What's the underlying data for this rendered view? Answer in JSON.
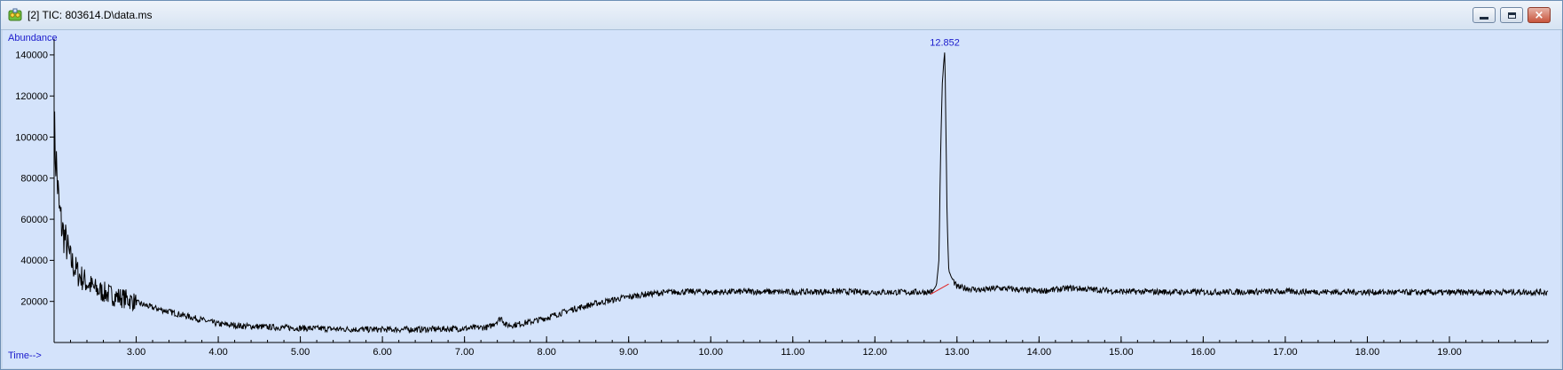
{
  "window": {
    "title": "[2] TIC: 803614.D\\data.ms",
    "icon": "chromatogram-icon",
    "buttons": [
      "minimize-icon",
      "maximize-icon",
      "close-icon"
    ],
    "close_glyph": "×"
  },
  "colors": {
    "plot_background": "#d4e3fb",
    "trace": "#000000",
    "baseline": "#e02020",
    "axis_title": "#1a1acc",
    "peak_label": "#1a1acc"
  },
  "chart_data": {
    "type": "line",
    "title": "",
    "ylabel": "Abundance",
    "xlabel": "Time-->",
    "xlim": [
      2.0,
      20.2
    ],
    "ylim": [
      0,
      146000
    ],
    "x_ticks": [
      "3.00",
      "4.00",
      "5.00",
      "6.00",
      "7.00",
      "8.00",
      "9.00",
      "10.00",
      "11.00",
      "12.00",
      "13.00",
      "14.00",
      "15.00",
      "16.00",
      "17.00",
      "18.00",
      "19.00"
    ],
    "y_ticks": [
      "20000",
      "40000",
      "60000",
      "80000",
      "100000",
      "120000",
      "140000"
    ],
    "grid": false,
    "series": [
      {
        "x": [
          2.0,
          2.03,
          2.06,
          2.1,
          2.15,
          2.2,
          2.3,
          2.4,
          2.5,
          2.7,
          2.9,
          3.0,
          3.2,
          3.4,
          3.6,
          3.8,
          4.0,
          4.3,
          4.6,
          5.0,
          5.5,
          6.0,
          6.5,
          7.0,
          7.3,
          7.45,
          7.5,
          7.6,
          7.8,
          8.0,
          8.3,
          8.6,
          8.9,
          9.2,
          9.5,
          9.8,
          10.0,
          10.5,
          11.0,
          11.5,
          12.0,
          12.5,
          12.7,
          12.75,
          12.78,
          12.8,
          12.82,
          12.84,
          12.852,
          12.86,
          12.88,
          12.9,
          12.93,
          12.97,
          13.0,
          13.3,
          13.5,
          14.0,
          14.4,
          15.0,
          16.0,
          17.0,
          18.0,
          19.0,
          19.5,
          20.2
        ],
        "y": [
          102000,
          85000,
          65000,
          55000,
          48000,
          40000,
          33000,
          29000,
          26000,
          23000,
          21000,
          19500,
          17000,
          15000,
          13000,
          11000,
          9000,
          8000,
          7500,
          7000,
          6500,
          6300,
          6400,
          6800,
          7500,
          12000,
          8500,
          8500,
          10000,
          12000,
          16000,
          19000,
          21500,
          23500,
          24500,
          24800,
          24500,
          24800,
          24500,
          24800,
          24500,
          24500,
          24600,
          28000,
          40000,
          90000,
          125000,
          137000,
          142000,
          120000,
          60000,
          35000,
          32000,
          29000,
          27000,
          25500,
          26500,
          25000,
          26500,
          24800,
          24500,
          24800,
          24500,
          24300,
          24600,
          24500
        ]
      }
    ],
    "annotations": [
      {
        "text": "12.852",
        "x": 12.852,
        "y": 142000
      }
    ],
    "baseline_segment": {
      "x": [
        12.68,
        12.9
      ],
      "y": [
        23500,
        28500
      ]
    }
  }
}
